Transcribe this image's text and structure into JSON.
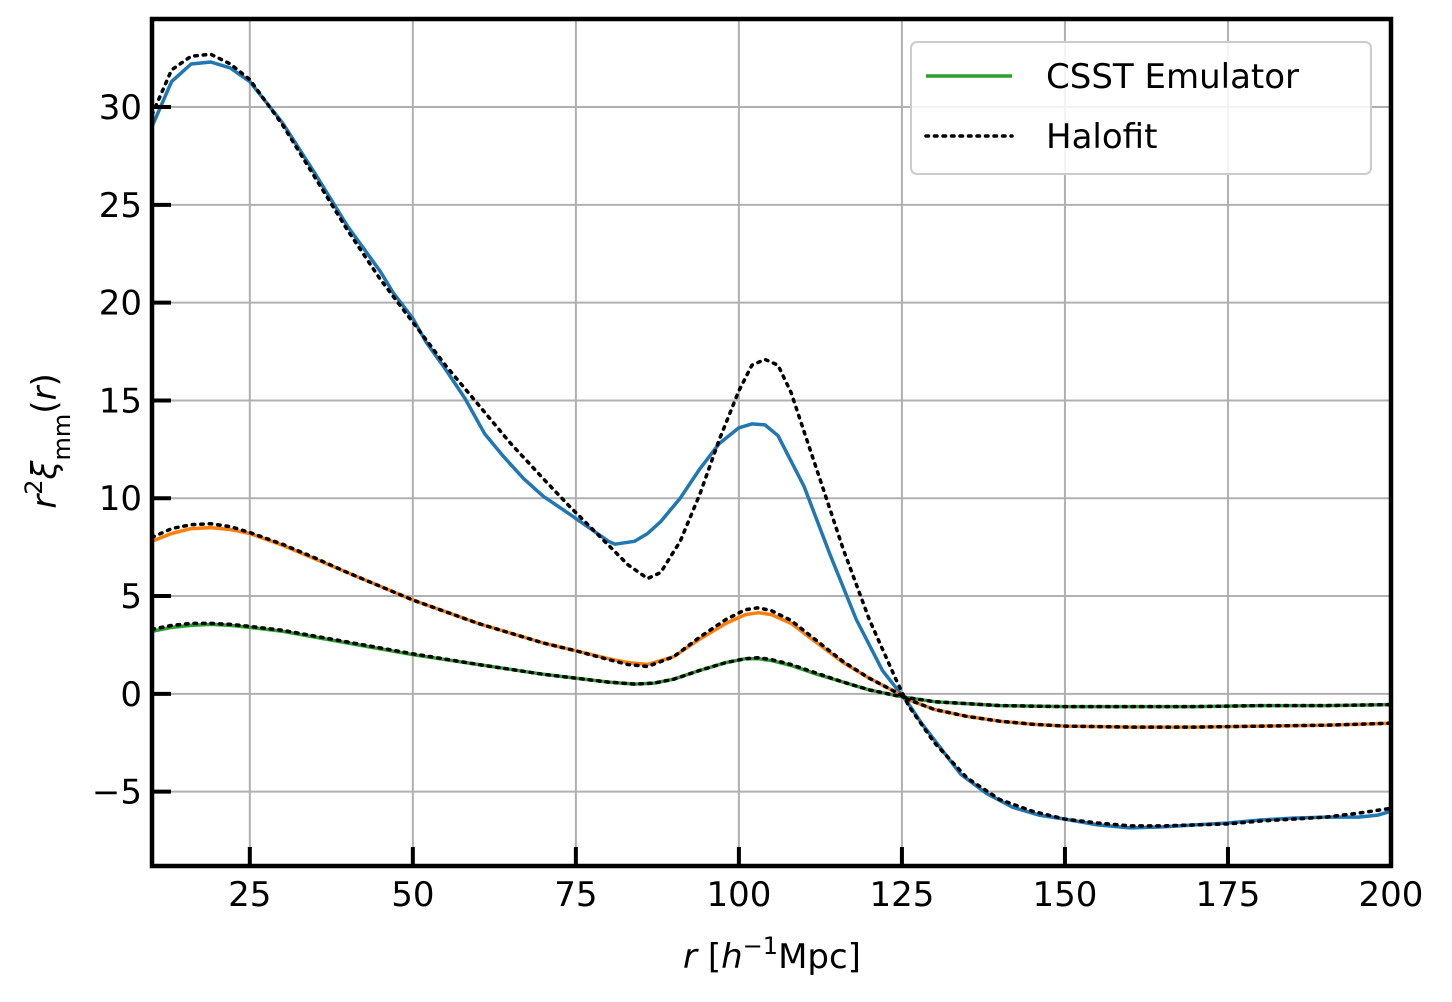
{
  "chart_data": {
    "type": "line",
    "xlabel": "r [h⁻¹Mpc]",
    "ylabel": "r²ξmm(r)",
    "xlim": [
      10,
      200
    ],
    "ylim": [
      -8.8,
      34.5
    ],
    "xticks": [
      25,
      50,
      75,
      100,
      125,
      150,
      175,
      200
    ],
    "yticks": [
      -5,
      0,
      5,
      10,
      15,
      20,
      25,
      30
    ],
    "xtick_labels": [
      "25",
      "50",
      "75",
      "100",
      "125",
      "150",
      "175",
      "200"
    ],
    "ytick_labels": [
      "−5",
      "0",
      "5",
      "10",
      "15",
      "20",
      "25",
      "30"
    ],
    "grid": true,
    "legend_position": "top-right",
    "legend": [
      {
        "label": "CSST Emulator",
        "color": "#2ca02c",
        "style": "solid"
      },
      {
        "label": "Halofit",
        "color": "#000000",
        "style": "dotted"
      }
    ],
    "series": [
      {
        "color": "#1f77b4",
        "style": "solid",
        "x": [
          10,
          13,
          16,
          19,
          22,
          25,
          30,
          35,
          40,
          45,
          47,
          50,
          52,
          55,
          58,
          61,
          64,
          67,
          70,
          74,
          77,
          80,
          81,
          84,
          86,
          88,
          91,
          94,
          97,
          100,
          102,
          104,
          106,
          110,
          114,
          118,
          122,
          126,
          128,
          131,
          134,
          138,
          142,
          146,
          150,
          155,
          160,
          165,
          170,
          175,
          180,
          185,
          190,
          195,
          198,
          200
        ],
        "y": [
          29.0,
          31.3,
          32.2,
          32.3,
          32.0,
          31.3,
          29.2,
          26.6,
          23.9,
          21.6,
          20.5,
          19.2,
          18.0,
          16.6,
          15.1,
          13.3,
          12.1,
          11.0,
          10.1,
          9.2,
          8.5,
          7.8,
          7.65,
          7.8,
          8.2,
          8.8,
          10.0,
          11.5,
          12.8,
          13.6,
          13.8,
          13.75,
          13.2,
          10.6,
          7.1,
          3.8,
          1.2,
          -0.5,
          -1.5,
          -2.8,
          -4.1,
          -5.1,
          -5.8,
          -6.2,
          -6.4,
          -6.7,
          -6.85,
          -6.8,
          -6.7,
          -6.6,
          -6.45,
          -6.35,
          -6.3,
          -6.3,
          -6.2,
          -6.0
        ]
      },
      {
        "color": "#ff7f0e",
        "style": "solid",
        "x": [
          10,
          13,
          16,
          19,
          22,
          25,
          30,
          35,
          40,
          45,
          50,
          55,
          60,
          65,
          70,
          75,
          80,
          83,
          86,
          90,
          94,
          98,
          101,
          103,
          105,
          108,
          112,
          116,
          120,
          124,
          126,
          130,
          135,
          140,
          145,
          150,
          160,
          170,
          180,
          190,
          200
        ],
        "y": [
          7.8,
          8.2,
          8.45,
          8.5,
          8.4,
          8.2,
          7.6,
          6.9,
          6.2,
          5.5,
          4.8,
          4.2,
          3.6,
          3.1,
          2.6,
          2.2,
          1.8,
          1.6,
          1.5,
          1.9,
          2.8,
          3.6,
          4.05,
          4.15,
          4.05,
          3.6,
          2.6,
          1.6,
          0.8,
          0.1,
          -0.3,
          -0.8,
          -1.15,
          -1.4,
          -1.55,
          -1.65,
          -1.7,
          -1.7,
          -1.65,
          -1.6,
          -1.5
        ]
      },
      {
        "color": "#2ca02c",
        "style": "solid",
        "x": [
          10,
          13,
          16,
          19,
          22,
          25,
          30,
          40,
          50,
          60,
          70,
          80,
          84,
          87,
          90,
          94,
          98,
          101,
          103,
          105,
          108,
          112,
          116,
          120,
          125,
          130,
          140,
          150,
          160,
          170,
          180,
          190,
          200
        ],
        "y": [
          3.2,
          3.4,
          3.5,
          3.55,
          3.5,
          3.4,
          3.2,
          2.6,
          2.0,
          1.5,
          1.0,
          0.6,
          0.5,
          0.55,
          0.75,
          1.2,
          1.6,
          1.8,
          1.8,
          1.7,
          1.45,
          1.0,
          0.6,
          0.2,
          -0.15,
          -0.4,
          -0.6,
          -0.65,
          -0.65,
          -0.65,
          -0.6,
          -0.6,
          -0.55
        ]
      },
      {
        "color": "#000000",
        "style": "dotted",
        "x": [
          10,
          13,
          16,
          19,
          22,
          25,
          30,
          35,
          40,
          45,
          50,
          55,
          60,
          65,
          70,
          74,
          77,
          80,
          83,
          86,
          88,
          91,
          94,
          97,
          100,
          102,
          104,
          106,
          108,
          110,
          113,
          116,
          120,
          124,
          126,
          130,
          135,
          140,
          145,
          150,
          155,
          160,
          165,
          170,
          175,
          180,
          185,
          190,
          195,
          200
        ],
        "y": [
          29.6,
          31.9,
          32.6,
          32.7,
          32.2,
          31.4,
          29.1,
          26.4,
          23.7,
          21.2,
          19.0,
          16.8,
          14.8,
          12.8,
          11.0,
          9.6,
          8.6,
          7.6,
          6.6,
          5.9,
          6.2,
          7.8,
          10.2,
          13.0,
          15.5,
          16.8,
          17.1,
          16.8,
          15.4,
          13.4,
          10.4,
          7.4,
          3.8,
          0.8,
          -0.6,
          -2.5,
          -4.3,
          -5.4,
          -6.0,
          -6.4,
          -6.6,
          -6.75,
          -6.75,
          -6.7,
          -6.65,
          -6.5,
          -6.4,
          -6.3,
          -6.1,
          -5.85
        ]
      },
      {
        "color": "#000000",
        "style": "dotted",
        "x": [
          10,
          13,
          16,
          19,
          22,
          25,
          30,
          35,
          40,
          45,
          50,
          55,
          60,
          65,
          70,
          75,
          80,
          83,
          86,
          90,
          94,
          98,
          101,
          103,
          105,
          108,
          112,
          116,
          120,
          124,
          126,
          130,
          135,
          140,
          145,
          150,
          160,
          170,
          180,
          190,
          200
        ],
        "y": [
          8.0,
          8.45,
          8.65,
          8.7,
          8.55,
          8.25,
          7.65,
          6.95,
          6.2,
          5.5,
          4.8,
          4.2,
          3.6,
          3.1,
          2.6,
          2.2,
          1.75,
          1.5,
          1.4,
          1.9,
          2.9,
          3.8,
          4.3,
          4.4,
          4.25,
          3.75,
          2.7,
          1.65,
          0.8,
          0.1,
          -0.3,
          -0.8,
          -1.15,
          -1.4,
          -1.55,
          -1.65,
          -1.7,
          -1.7,
          -1.65,
          -1.6,
          -1.5
        ]
      },
      {
        "color": "#000000",
        "style": "dotted",
        "x": [
          10,
          13,
          16,
          19,
          22,
          25,
          30,
          40,
          50,
          60,
          70,
          80,
          84,
          87,
          90,
          94,
          98,
          101,
          103,
          105,
          108,
          112,
          116,
          120,
          125,
          130,
          140,
          150,
          160,
          170,
          180,
          190,
          200
        ],
        "y": [
          3.3,
          3.5,
          3.6,
          3.6,
          3.55,
          3.45,
          3.25,
          2.65,
          2.05,
          1.5,
          1.0,
          0.6,
          0.5,
          0.55,
          0.75,
          1.2,
          1.6,
          1.8,
          1.85,
          1.75,
          1.5,
          1.05,
          0.6,
          0.2,
          -0.15,
          -0.4,
          -0.6,
          -0.65,
          -0.65,
          -0.65,
          -0.6,
          -0.6,
          -0.55
        ]
      }
    ]
  }
}
